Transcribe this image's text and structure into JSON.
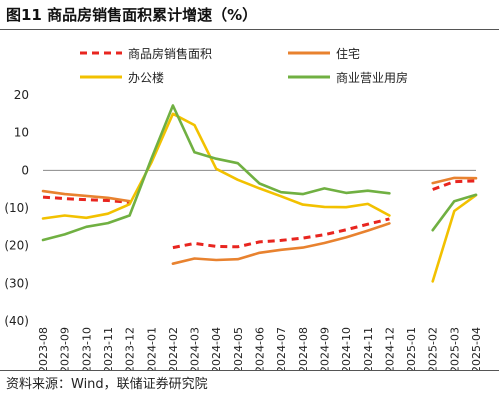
{
  "title": "图11 商品房销售面积累计增速（%）",
  "source": "资料来源：Wind，联储证券研究院",
  "chart_data": {
    "type": "line",
    "categories": [
      "2023-08",
      "2023-09",
      "2023-10",
      "2023-11",
      "2023-12",
      "2024-01",
      "2024-02",
      "2024-03",
      "2024-04",
      "2024-05",
      "2024-06",
      "2024-07",
      "2024-08",
      "2024-09",
      "2024-10",
      "2024-11",
      "2024-12",
      "2025-01",
      "2025-02",
      "2025-03",
      "2025-04"
    ],
    "ylim": [
      -40,
      20
    ],
    "yticks": [
      20,
      10,
      0,
      -10,
      -20,
      -30,
      -40
    ],
    "ytick_labels": [
      "20",
      "10",
      "0",
      "(10)",
      "(20)",
      "(30)",
      "(40)"
    ],
    "legend_position": "top",
    "series": [
      {
        "name": "商品房销售面积",
        "color": "#e8251f",
        "dash": true,
        "values": [
          -7.1,
          -7.5,
          -7.8,
          -8.0,
          -8.5,
          null,
          -20.5,
          -19.4,
          -20.2,
          -20.3,
          -19.0,
          -18.6,
          -18.0,
          -17.1,
          -15.8,
          -14.3,
          -12.9,
          null,
          -5.1,
          -3.0,
          -2.8
        ]
      },
      {
        "name": "住宅",
        "color": "#e8822f",
        "dash": false,
        "values": [
          -5.5,
          -6.3,
          -6.8,
          -7.3,
          -8.2,
          null,
          -24.8,
          -23.4,
          -23.8,
          -23.6,
          -21.9,
          -21.1,
          -20.5,
          -19.3,
          -17.8,
          -16.0,
          -14.1,
          null,
          -3.4,
          -2.0,
          -2.1
        ]
      },
      {
        "name": "办公楼",
        "color": "#f2c100",
        "dash": false,
        "values": [
          -12.8,
          -12.0,
          -12.6,
          -11.5,
          -9.0,
          2.0,
          15.0,
          12.0,
          0.4,
          -2.5,
          -4.8,
          -6.9,
          -9.1,
          -9.7,
          -9.8,
          -8.9,
          -12.0,
          null,
          -29.5,
          -10.8,
          -6.6
        ]
      },
      {
        "name": "商业营业用房",
        "color": "#70b042",
        "dash": false,
        "values": [
          -18.5,
          -17.0,
          -15.0,
          -14.0,
          -12.0,
          3.0,
          17.2,
          4.8,
          3.1,
          1.9,
          -3.5,
          -5.8,
          -6.3,
          -4.8,
          -6.0,
          -5.4,
          -6.1,
          null,
          -15.9,
          -8.2,
          -6.5
        ]
      }
    ]
  }
}
